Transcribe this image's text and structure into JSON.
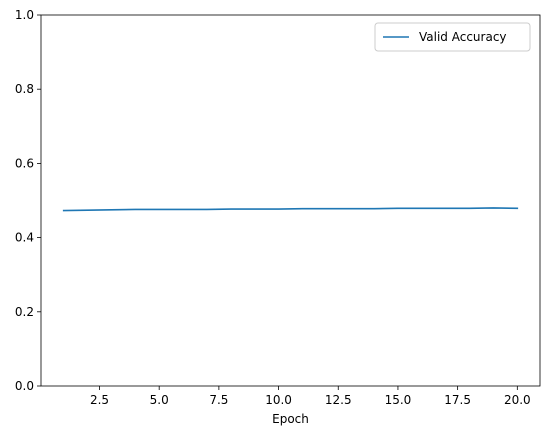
{
  "chart_data": {
    "type": "line",
    "title": "",
    "xlabel": "Epoch",
    "ylabel": "",
    "xlim": [
      0.05,
      20.95
    ],
    "ylim": [
      0,
      1
    ],
    "x_ticks": [
      2.5,
      5.0,
      7.5,
      10.0,
      12.5,
      15.0,
      17.5,
      20.0
    ],
    "x_tick_labels": [
      "2.5",
      "5.0",
      "7.5",
      "10.0",
      "12.5",
      "15.0",
      "17.5",
      "20.0"
    ],
    "y_ticks": [
      0.0,
      0.2,
      0.4,
      0.6,
      0.8,
      1.0
    ],
    "y_tick_labels": [
      "0.0",
      "0.2",
      "0.4",
      "0.6",
      "0.8",
      "1.0"
    ],
    "grid": false,
    "legend": "top-right",
    "series": [
      {
        "name": "Valid Accuracy",
        "color": "#1f77b4",
        "x": [
          1,
          2,
          3,
          4,
          5,
          6,
          7,
          8,
          9,
          10,
          11,
          12,
          13,
          14,
          15,
          16,
          17,
          18,
          19,
          20
        ],
        "y": [
          0.473,
          0.474,
          0.475,
          0.476,
          0.476,
          0.476,
          0.476,
          0.477,
          0.477,
          0.477,
          0.478,
          0.478,
          0.478,
          0.478,
          0.479,
          0.479,
          0.479,
          0.479,
          0.48,
          0.479
        ]
      }
    ]
  }
}
